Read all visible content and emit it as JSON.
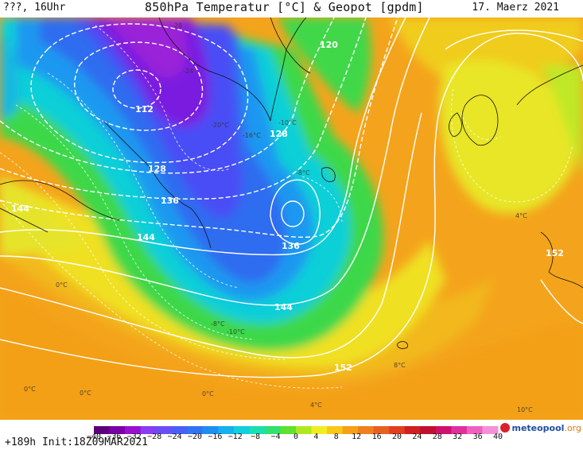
{
  "header": {
    "left": "???, 16Uhr",
    "title": "850hPa Temperatur [°C] & Geopot [gpdm]",
    "date": "17. Maerz 2021"
  },
  "footer": {
    "run_info": "+189h  Init:18Z09MAR2021",
    "logo_main": "meteopool",
    "logo_tld": ".org"
  },
  "colorbar": {
    "labels": [
      "−40",
      "−36",
      "−32",
      "−28",
      "−24",
      "−20",
      "−16",
      "−12",
      "−8",
      "−4",
      "0",
      "4",
      "8",
      "12",
      "16",
      "20",
      "24",
      "28",
      "32",
      "36",
      "40"
    ],
    "colors": [
      "#5b007a",
      "#7a00a8",
      "#9a10d0",
      "#8a3cf0",
      "#6a4ef5",
      "#4a60f5",
      "#2f74f0",
      "#1f8ef0",
      "#16b0ee",
      "#10cfe0",
      "#18e0b0",
      "#30e070",
      "#60e030",
      "#b0e820",
      "#f0ee20",
      "#f8c818",
      "#f4a018",
      "#ee8020",
      "#e86020",
      "#e04020",
      "#d02020",
      "#c01030",
      "#d01070",
      "#e030a0",
      "#f060c0",
      "#f590d8"
    ]
  },
  "map": {
    "geopot_labels": [
      {
        "text": "112"
      },
      {
        "text": "120"
      },
      {
        "text": "128"
      },
      {
        "text": "128"
      },
      {
        "text": "136"
      },
      {
        "text": "136"
      },
      {
        "text": "144"
      },
      {
        "text": "144"
      },
      {
        "text": "144"
      },
      {
        "text": "152"
      },
      {
        "text": "152"
      }
    ],
    "temp_labels": [
      {
        "text": "-28"
      },
      {
        "text": "-24"
      },
      {
        "text": "-20°C"
      },
      {
        "text": "-16°C"
      },
      {
        "text": "-10°C"
      },
      {
        "text": "-8°C"
      },
      {
        "text": "0°C"
      },
      {
        "text": "-10°C"
      },
      {
        "text": "-8°C"
      },
      {
        "text": "0°C"
      },
      {
        "text": "0°C"
      },
      {
        "text": "0°C"
      },
      {
        "text": "4°C"
      },
      {
        "text": "4°C"
      },
      {
        "text": "8°C"
      },
      {
        "text": "10°C"
      }
    ]
  }
}
